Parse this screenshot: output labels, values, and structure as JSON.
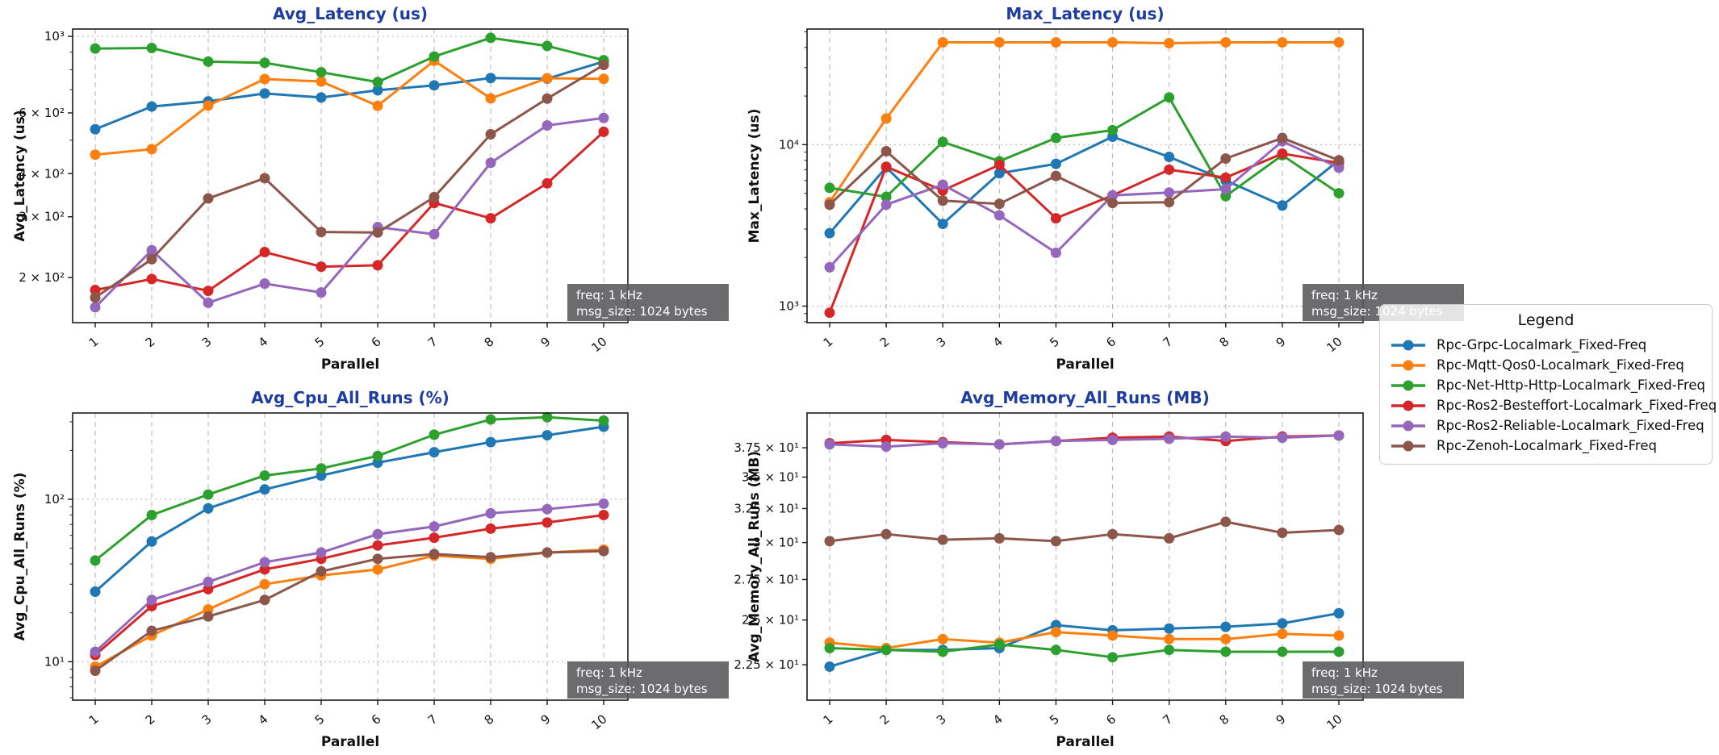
{
  "page": {
    "background": "#ffffff",
    "title_color": "#1e3d9e",
    "grid_color": "#b3b3b3",
    "spine_color": "#1a1a1a",
    "tick_text_color": "#111111",
    "annotation_bg": "#58585a",
    "annotation_text_color": "#ffffff"
  },
  "annotation": {
    "line1": "freq: 1 kHz",
    "line2": "msg_size: 1024 bytes"
  },
  "legend": {
    "title": "Legend",
    "items": [
      "Rpc-Grpc-Localmark_Fixed-Freq",
      "Rpc-Mqtt-Qos0-Localmark_Fixed-Freq",
      "Rpc-Net-Http-Http-Localmark_Fixed-Freq",
      "Rpc-Ros2-Besteffort-Localmark_Fixed-Freq",
      "Rpc-Ros2-Reliable-Localmark_Fixed-Freq",
      "Rpc-Zenoh-Localmark_Fixed-Freq"
    ]
  },
  "series_meta": [
    {
      "name": "Rpc-Grpc-Localmark_Fixed-Freq",
      "color": "#1f77b4"
    },
    {
      "name": "Rpc-Mqtt-Qos0-Localmark_Fixed-Freq",
      "color": "#ff7f0e"
    },
    {
      "name": "Rpc-Net-Http-Http-Localmark_Fixed-Freq",
      "color": "#2ca02c"
    },
    {
      "name": "Rpc-Ros2-Besteffort-Localmark_Fixed-Freq",
      "color": "#d62728"
    },
    {
      "name": "Rpc-Ros2-Reliable-Localmark_Fixed-Freq",
      "color": "#9467bd"
    },
    {
      "name": "Rpc-Zenoh-Localmark_Fixed-Freq",
      "color": "#8c564b"
    }
  ],
  "chart_data": [
    {
      "id": "avg-latency",
      "type": "line",
      "title": "Avg_Latency (us)",
      "xlabel": "Parallel",
      "ylabel": "Avg_Latency (us)",
      "y_scale": "log",
      "ylim": [
        148,
        1050
      ],
      "x": [
        1,
        2,
        3,
        4,
        5,
        6,
        7,
        8,
        9,
        10
      ],
      "yticks": [
        {
          "value": 1000,
          "label": "10³",
          "grid": true
        },
        {
          "value": 600,
          "label": "6 × 10²",
          "grid": false
        },
        {
          "value": 400,
          "label": "4 × 10²",
          "grid": false
        },
        {
          "value": 300,
          "label": "3 × 10²",
          "grid": false
        },
        {
          "value": 200,
          "label": "2 × 10²",
          "grid": false
        }
      ],
      "series": [
        {
          "name": "Rpc-Grpc-Localmark_Fixed-Freq",
          "values": [
            538,
            626,
            648,
            683,
            665,
            698,
            721,
            757,
            754,
            845
          ]
        },
        {
          "name": "Rpc-Mqtt-Qos0-Localmark_Fixed-Freq",
          "values": [
            454,
            471,
            630,
            752,
            740,
            629,
            850,
            661,
            756,
            753
          ]
        },
        {
          "name": "Rpc-Net-Http-Http-Localmark_Fixed-Freq",
          "values": [
            922,
            925,
            845,
            838,
            787,
            737,
            874,
            990,
            938,
            853
          ]
        },
        {
          "name": "Rpc-Ros2-Besteffort-Localmark_Fixed-Freq",
          "values": [
            184,
            198,
            183,
            237,
            215,
            217,
            329,
            297,
            375,
            529
          ]
        },
        {
          "name": "Rpc-Ros2-Reliable-Localmark_Fixed-Freq",
          "values": [
            164,
            240,
            169,
            192,
            181,
            280,
            267,
            430,
            552,
            580
          ]
        },
        {
          "name": "Rpc-Zenoh-Localmark_Fixed-Freq",
          "values": [
            175,
            226,
            339,
            388,
            271,
            270,
            342,
            520,
            660,
            826
          ]
        }
      ]
    },
    {
      "id": "max-latency",
      "type": "line",
      "title": "Max_Latency (us)",
      "xlabel": "Parallel",
      "ylabel": "Max_Latency (us)",
      "y_scale": "log",
      "ylim": [
        790,
        52000
      ],
      "x": [
        1,
        2,
        3,
        4,
        5,
        6,
        7,
        8,
        9,
        10
      ],
      "yticks": [
        {
          "value": 10000,
          "label": "10⁴",
          "grid": true
        },
        {
          "value": 1000,
          "label": "10³",
          "grid": true
        }
      ],
      "series": [
        {
          "name": "Rpc-Grpc-Localmark_Fixed-Freq",
          "values": [
            2830,
            7250,
            3230,
            6650,
            7600,
            11200,
            8400,
            6000,
            4200,
            8000
          ]
        },
        {
          "name": "Rpc-Mqtt-Qos0-Localmark_Fixed-Freq",
          "values": [
            4400,
            14500,
            43000,
            43000,
            43000,
            43000,
            42500,
            43000,
            43000,
            43000
          ]
        },
        {
          "name": "Rpc-Net-Http-Http-Localmark_Fixed-Freq",
          "values": [
            5400,
            4750,
            10400,
            7900,
            11000,
            12300,
            19600,
            4800,
            8600,
            5000
          ]
        },
        {
          "name": "Rpc-Ros2-Besteffort-Localmark_Fixed-Freq",
          "values": [
            910,
            7300,
            5200,
            7500,
            3500,
            4850,
            7000,
            6250,
            8800,
            7700
          ]
        },
        {
          "name": "Rpc-Ros2-Reliable-Localmark_Fixed-Freq",
          "values": [
            1740,
            4250,
            5650,
            3650,
            2140,
            4850,
            5050,
            5300,
            10500,
            7200
          ]
        },
        {
          "name": "Rpc-Zenoh-Localmark_Fixed-Freq",
          "values": [
            4250,
            9100,
            4500,
            4300,
            6400,
            4350,
            4400,
            8200,
            11000,
            8000
          ]
        }
      ]
    },
    {
      "id": "avg-cpu",
      "type": "line",
      "title": "Avg_Cpu_All_Runs (%)",
      "xlabel": "Parallel",
      "ylabel": "Avg_Cpu_All_Runs (%)",
      "y_scale": "log",
      "ylim": [
        5.8,
        340
      ],
      "x": [
        1,
        2,
        3,
        4,
        5,
        6,
        7,
        8,
        9,
        10
      ],
      "yticks": [
        {
          "value": 100,
          "label": "10²",
          "grid": true
        },
        {
          "value": 10,
          "label": "10¹",
          "grid": true
        }
      ],
      "series": [
        {
          "name": "Rpc-Grpc-Localmark_Fixed-Freq",
          "values": [
            27,
            55,
            88,
            115,
            140,
            168,
            195,
            225,
            248,
            280
          ]
        },
        {
          "name": "Rpc-Mqtt-Qos0-Localmark_Fixed-Freq",
          "values": [
            9.3,
            14.5,
            21,
            30,
            34,
            37,
            45,
            43,
            47,
            49
          ]
        },
        {
          "name": "Rpc-Net-Http-Http-Localmark_Fixed-Freq",
          "values": [
            42,
            80,
            107,
            140,
            155,
            185,
            250,
            310,
            320,
            305
          ]
        },
        {
          "name": "Rpc-Ros2-Besteffort-Localmark_Fixed-Freq",
          "values": [
            11,
            22,
            28,
            37,
            43,
            52,
            58,
            66,
            72,
            80
          ]
        },
        {
          "name": "Rpc-Ros2-Reliable-Localmark_Fixed-Freq",
          "values": [
            11.5,
            24,
            31,
            41,
            47,
            61,
            68,
            82,
            87,
            94
          ]
        },
        {
          "name": "Rpc-Zenoh-Localmark_Fixed-Freq",
          "values": [
            8.8,
            15.5,
            19,
            24,
            36,
            43,
            46,
            44,
            47,
            48
          ]
        }
      ]
    },
    {
      "id": "avg-memory",
      "type": "line",
      "title": "Avg_Memory_All_Runs (MB)",
      "xlabel": "Parallel",
      "ylabel": "Avg_Memory_All_Runs (MB)",
      "y_scale": "log",
      "ylim": [
        20.7,
        40.7
      ],
      "x": [
        1,
        2,
        3,
        4,
        5,
        6,
        7,
        8,
        9,
        10
      ],
      "yticks": [
        {
          "value": 37.5,
          "label": "3.75 × 10¹",
          "grid": false
        },
        {
          "value": 35,
          "label": "3.5 × 10¹",
          "grid": false
        },
        {
          "value": 32.5,
          "label": "3.25 × 10¹",
          "grid": false
        },
        {
          "value": 30,
          "label": "3 × 10¹",
          "grid": false
        },
        {
          "value": 27.5,
          "label": "2.75 × 10¹",
          "grid": false
        },
        {
          "value": 25,
          "label": "2.5 × 10¹",
          "grid": false
        },
        {
          "value": 22.5,
          "label": "2.25 × 10¹",
          "grid": false
        }
      ],
      "series": [
        {
          "name": "Rpc-Grpc-Localmark_Fixed-Freq",
          "values": [
            22.4,
            23.3,
            23.3,
            23.4,
            24.7,
            24.4,
            24.5,
            24.6,
            24.8,
            25.4
          ]
        },
        {
          "name": "Rpc-Mqtt-Qos0-Localmark_Fixed-Freq",
          "values": [
            23.7,
            23.4,
            23.9,
            23.7,
            24.3,
            24.1,
            23.9,
            23.9,
            24.2,
            24.1
          ]
        },
        {
          "name": "Rpc-Net-Http-Http-Localmark_Fixed-Freq",
          "values": [
            23.4,
            23.3,
            23.2,
            23.6,
            23.3,
            22.9,
            23.3,
            23.2,
            23.2,
            23.2
          ]
        },
        {
          "name": "Rpc-Ros2-Besteffort-Localmark_Fixed-Freq",
          "values": [
            37.9,
            38.2,
            38.0,
            37.8,
            38.1,
            38.4,
            38.5,
            38.1,
            38.5,
            38.6
          ]
        },
        {
          "name": "Rpc-Ros2-Reliable-Localmark_Fixed-Freq",
          "values": [
            37.8,
            37.6,
            37.9,
            37.8,
            38.1,
            38.2,
            38.3,
            38.5,
            38.4,
            38.6
          ]
        },
        {
          "name": "Rpc-Zenoh-Localmark_Fixed-Freq",
          "values": [
            30.1,
            30.6,
            30.2,
            30.3,
            30.1,
            30.6,
            30.3,
            31.5,
            30.7,
            30.9
          ]
        }
      ]
    }
  ]
}
